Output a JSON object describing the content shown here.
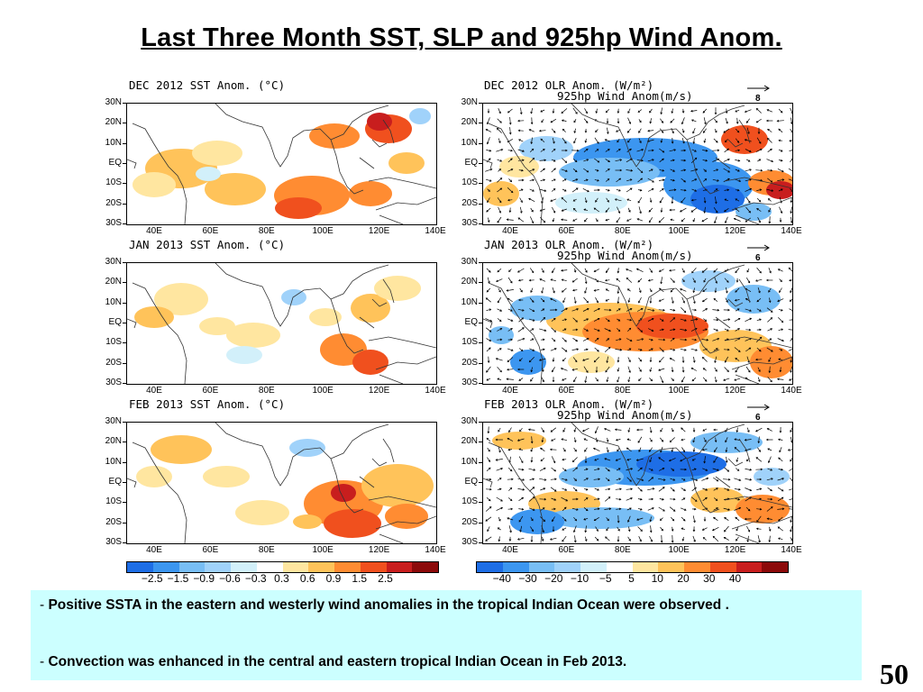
{
  "slide": {
    "title": "Last Three Month SST, SLP and 925hp Wind Anom.",
    "page_number": "50"
  },
  "panels": {
    "sst": [
      {
        "title": "DEC 2012 SST Anom. (°C)"
      },
      {
        "title": "JAN 2013 SST Anom. (°C)"
      },
      {
        "title": "FEB 2013 SST Anom. (°C)"
      }
    ],
    "olr": [
      {
        "title": "DEC 2012 OLR Anom. (W/m²)",
        "subtitle": "925hp Wind Anom(m/s)",
        "ref_vector": "8"
      },
      {
        "title": "JAN 2013 OLR Anom. (W/m²)",
        "subtitle": "925hp Wind Anom(m/s)",
        "ref_vector": "6"
      },
      {
        "title": "FEB 2013 OLR Anom. (W/m²)",
        "subtitle": "925hp Wind Anom(m/s)",
        "ref_vector": "6"
      }
    ]
  },
  "axes": {
    "lat_labels": [
      "30N",
      "20N",
      "10N",
      "EQ",
      "10S",
      "20S",
      "30S"
    ],
    "lon_labels": [
      "40E",
      "60E",
      "80E",
      "100E",
      "120E",
      "140E"
    ]
  },
  "colorbars": {
    "sst": {
      "labels": [
        "−2.5",
        "−1.5",
        "−0.9",
        "−0.6",
        "−0.3",
        "0.3",
        "0.6",
        "0.9",
        "1.5",
        "2.5"
      ],
      "colors": [
        "#1e6ee6",
        "#3c96f0",
        "#78bef5",
        "#a0d2fa",
        "#d2f0fa",
        "#ffffff",
        "#ffe6a0",
        "#ffc35a",
        "#ff8c32",
        "#f0501e",
        "#c81e1e",
        "#8c0a0a"
      ]
    },
    "olr": {
      "labels": [
        "−40",
        "−30",
        "−20",
        "−10",
        "−5",
        "5",
        "10",
        "20",
        "30",
        "40"
      ],
      "colors": [
        "#1e6ee6",
        "#3c96f0",
        "#78bef5",
        "#a0d2fa",
        "#d2f0fa",
        "#ffffff",
        "#ffe6a0",
        "#ffc35a",
        "#ff8c32",
        "#f0501e",
        "#c81e1e",
        "#8c0a0a"
      ]
    }
  },
  "summary": {
    "bullets": [
      {
        "dash": "- ",
        "text": "Positive SSTA  in the eastern and westerly wind anomalies in the tropical Indian Ocean were observed ."
      },
      {
        "dash": "-  ",
        "text": "Convection was enhanced in the central and eastern tropical Indian Ocean in Feb 2013."
      }
    ]
  }
}
